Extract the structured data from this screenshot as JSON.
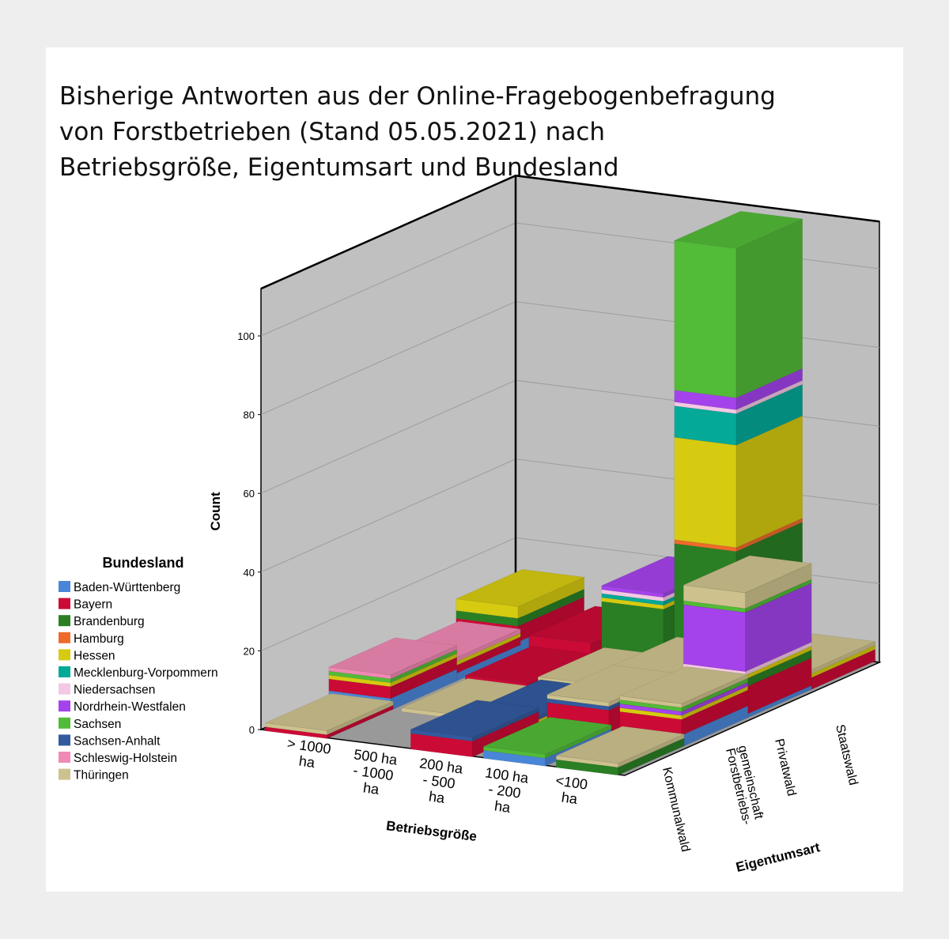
{
  "title_lines": [
    "Bisherige Antworten aus der Online-Fragebogenbefragung",
    "von Forstbetrieben (Stand 05.05.2021) nach",
    "Betriebsgröße, Eigentumsart und Bundesland"
  ],
  "chart_data": {
    "type": "bar",
    "subtype": "3d-stacked",
    "ylabel": "Count",
    "xlabel": "Betriebsgröße",
    "zlabel": "Eigentumsart",
    "ylim": [
      0,
      112
    ],
    "yticks": [
      0,
      20,
      40,
      60,
      80,
      100
    ],
    "grid": true,
    "legend_title": "Bundesland",
    "legend_position": "left",
    "x_categories": [
      "> 1000 ha",
      "500 ha - 1000 ha",
      "200 ha - 500 ha",
      "100 ha - 200 ha",
      "<100 ha"
    ],
    "x_tick_lines": [
      [
        "> 1000",
        "ha"
      ],
      [
        "500 ha",
        "- 1000",
        "ha"
      ],
      [
        "200 ha",
        "- 500",
        "ha"
      ],
      [
        "100 ha",
        "- 200",
        "ha"
      ],
      [
        "<100",
        "ha"
      ]
    ],
    "z_categories": [
      "Kommunalwald",
      "Forstbetriebs-gemeinschaft",
      "Privatwald",
      "Staatswald"
    ],
    "z_tick_lines": [
      [
        "Kommunalwald"
      ],
      [
        "Forstbetriebs-",
        "gemeinschaft"
      ],
      [
        "Privatwald"
      ],
      [
        "Staatswald"
      ]
    ],
    "series": [
      {
        "name": "Baden-Württenberg",
        "color": "#4a86d8"
      },
      {
        "name": "Bayern",
        "color": "#cc0a36"
      },
      {
        "name": "Brandenburg",
        "color": "#2a7f24"
      },
      {
        "name": "Hamburg",
        "color": "#ee6a2a"
      },
      {
        "name": "Hessen",
        "color": "#d6cb10"
      },
      {
        "name": "Mecklenburg-Vorpommern",
        "color": "#04a998"
      },
      {
        "name": "Niedersachsen",
        "color": "#f4c8e4"
      },
      {
        "name": "Nordrhein-Westfalen",
        "color": "#a443ec"
      },
      {
        "name": "Sachsen",
        "color": "#52bb37"
      },
      {
        "name": "Sachsen-Anhalt",
        "color": "#335a9f"
      },
      {
        "name": "Schleswig-Holstein",
        "color": "#f089b4"
      },
      {
        "name": "Thüringen",
        "color": "#cdc28e"
      }
    ],
    "bars": [
      {
        "x": "> 1000 ha",
        "z": "Staatswald",
        "values": {
          "Hessen": 3,
          "Brandenburg": 2,
          "Bayern": 4,
          "Baden-Württenberg": 3
        }
      },
      {
        "x": "500 ha - 1000 ha",
        "z": "Staatswald",
        "values": {
          "Bayern": 5
        }
      },
      {
        "x": "200 ha - 500 ha",
        "z": "Staatswald",
        "values": {
          "Hessen": 1,
          "Nordrhein-Westfalen": 1,
          "Niedersachsen": 1,
          "Mecklenburg-Vorpommern": 1,
          "Brandenburg": 12,
          "Bayern": 2,
          "Baden-Württenberg": 2
        }
      },
      {
        "x": "100 ha - 200 ha",
        "z": "Staatswald",
        "values": {
          "Sachsen": 38,
          "Nordrhein-Westfalen": 3,
          "Niedersachsen": 1,
          "Mecklenburg-Vorpommern": 8,
          "Hessen": 26,
          "Hamburg": 1,
          "Brandenburg": 30,
          "Bayern": 3
        }
      },
      {
        "x": "<100 ha",
        "z": "Staatswald",
        "values": {
          "Thüringen": 1,
          "Hessen": 1,
          "Bayern": 3
        }
      },
      {
        "x": "> 1000 ha",
        "z": "Privatwald",
        "values": {
          "Schleswig-Holstein": 1,
          "Hessen": 1,
          "Bayern": 2,
          "Baden-Württenberg": 2
        }
      },
      {
        "x": "500 ha - 1000 ha",
        "z": "Privatwald",
        "values": {
          "Bayern": 2
        }
      },
      {
        "x": "200 ha - 500 ha",
        "z": "Privatwald",
        "values": {
          "Thüringen": 1,
          "Sachsen": 1,
          "Bayern": 2
        }
      },
      {
        "x": "100 ha - 200 ha",
        "z": "Privatwald",
        "values": {
          "Thüringen": 1,
          "Sachsen-Anhalt": 1,
          "Brandenburg": 1,
          "Bayern": 6
        }
      },
      {
        "x": "<100 ha",
        "z": "Privatwald",
        "values": {
          "Thüringen": 4,
          "Sachsen": 1,
          "Hessen": 1,
          "Nordrhein-Westfalen": 15,
          "Niedersachsen": 1,
          "Brandenburg": 2,
          "Bayern": 7,
          "Baden-Württenberg": 1
        }
      },
      {
        "x": "> 1000 ha",
        "z": "Forstbetriebs-gemeinschaft",
        "values": {
          "Schleswig-Holstein": 1,
          "Sachsen": 1,
          "Hessen": 1,
          "Bayern": 3,
          "Baden-Württenberg": 3
        }
      },
      {
        "x": "500 ha - 1000 ha",
        "z": "Forstbetriebs-gemeinschaft",
        "values": {
          "Thüringen": 1
        }
      },
      {
        "x": "200 ha - 500 ha",
        "z": "Forstbetriebs-gemeinschaft",
        "values": {
          "Hessen": 1,
          "Sachsen-Anhalt": 1,
          "Bayern": 1
        }
      },
      {
        "x": "100 ha - 200 ha",
        "z": "Forstbetriebs-gemeinschaft",
        "values": {
          "Thüringen": 1,
          "Sachsen-Anhalt": 1,
          "Bayern": 6,
          "Baden-Württenberg": 1
        }
      },
      {
        "x": "<100 ha",
        "z": "Forstbetriebs-gemeinschaft",
        "values": {
          "Thüringen": 1,
          "Sachsen": 1,
          "Nordrhein-Westfalen": 1,
          "Hessen": 1,
          "Bayern": 4,
          "Baden-Württenberg": 3
        }
      },
      {
        "x": "> 1000 ha",
        "z": "Kommunalwald",
        "values": {
          "Thüringen": 1,
          "Bayern": 1
        }
      },
      {
        "x": "200 ha - 500 ha",
        "z": "Kommunalwald",
        "values": {
          "Sachsen-Anhalt": 1,
          "Bayern": 4
        }
      },
      {
        "x": "100 ha - 200 ha",
        "z": "Kommunalwald",
        "values": {
          "Sachsen": 1,
          "Baden-Württenberg": 2
        }
      },
      {
        "x": "<100 ha",
        "z": "Kommunalwald",
        "values": {
          "Thüringen": 1,
          "Brandenburg": 2
        }
      }
    ]
  }
}
